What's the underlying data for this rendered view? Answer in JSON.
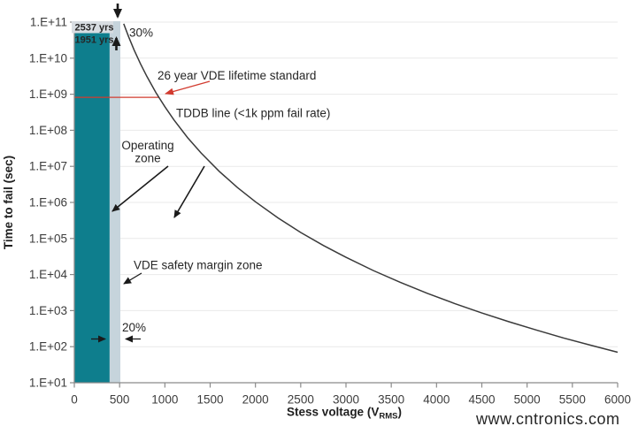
{
  "chart_data": {
    "type": "line",
    "title": "",
    "x_scale": "linear",
    "y_scale": "log",
    "xlabel": "Stess voltage (VRMS)",
    "xlabel_parts": {
      "main": "Stess voltage (V",
      "sub": "RMS",
      "close": ")"
    },
    "ylabel": "Time to fail (sec)",
    "xlim": [
      0,
      6000
    ],
    "ylim_exponents": [
      1,
      11
    ],
    "grid": "horizontal",
    "legend": "none",
    "x_ticks": [
      0,
      500,
      1000,
      1500,
      2000,
      2500,
      3000,
      3500,
      4000,
      4500,
      5000,
      5500,
      6000
    ],
    "y_tick_labels": [
      "1.E+11",
      "1.E+10",
      "1.E+09",
      "1.E+08",
      "1.E+07",
      "1.E+06",
      "1.E+05",
      "1.E+04",
      "1.E+03",
      "1.E+02",
      "1.E+01"
    ],
    "series": [
      {
        "name": "TDDB line (<1k ppm fail rate)",
        "color": "#3A3A3A",
        "points": [
          [
            545,
            90000000000.0
          ],
          [
            600,
            39000000000.0
          ],
          [
            660,
            17000000000.0
          ],
          [
            730,
            7000000000.0
          ],
          [
            800,
            3150000000.0
          ],
          [
            900,
            1120000000.0
          ],
          [
            1000,
            450000000.0
          ],
          [
            1100,
            194000000.0
          ],
          [
            1250,
            63000000.0
          ],
          [
            1400,
            23500000.0
          ],
          [
            1600,
            7300000.0
          ],
          [
            1800,
            2600000.0
          ],
          [
            2000,
            1040000.0
          ],
          [
            2250,
            370000.0
          ],
          [
            2500,
            147000.0
          ],
          [
            2750,
            64000.0
          ],
          [
            3000,
            30000.0
          ],
          [
            3300,
            13000.0
          ],
          [
            3600,
            6100.0
          ],
          [
            3900,
            3000.0
          ],
          [
            4200,
            1570.0
          ],
          [
            4500,
            860.0
          ],
          [
            4800,
            490.0
          ],
          [
            5100,
            290.0
          ],
          [
            5400,
            175.0
          ],
          [
            5700,
            110.0
          ],
          [
            6000,
            70.0
          ]
        ]
      }
    ],
    "zones": [
      {
        "name": "operating-zone",
        "v_range": [
          0,
          390
        ],
        "color": "#0E7E8D",
        "lifetime": "1951 yrs"
      },
      {
        "name": "vde-safety-margin-zone",
        "v_range": [
          390,
          508
        ],
        "color": "#C6D4DC",
        "lifetime": "2537 yrs"
      }
    ],
    "reference_lines": [
      {
        "label": "26 year VDE lifetime standard",
        "t_sec": 820000000.0,
        "color": "#D23B2F"
      }
    ]
  },
  "labels": {
    "lifetime_2537": "2537 yrs",
    "lifetime_1951": "1951 yrs",
    "top_margin_pct": "30%",
    "band_margin_pct": "20%",
    "vde_standard": "26 year VDE lifetime standard",
    "tddb_line": "TDDB line (<1k ppm fail rate)",
    "operating_zone_lines": [
      "Operating",
      "zone"
    ],
    "vde_margin_zone": "VDE safety margin zone"
  },
  "watermark": {
    "text": "www.cntronics.com",
    "color": "#B9DBA4"
  },
  "colors": {
    "axis": "#8A8A8A",
    "grid": "#E9E9E9",
    "curve": "#3A3A3A",
    "operating_zone": "#0E7E8D",
    "margin_band": "#C6D4DC",
    "label_box": "#D8DDE2",
    "arrow_black": "#1A1A1A",
    "red": "#D23B2F"
  }
}
